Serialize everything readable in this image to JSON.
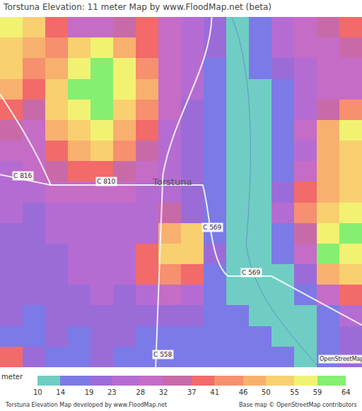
{
  "chart_data": {
    "type": "heatmap",
    "title": "Torstuna Elevation: 11 meter Map by www.FloodMap.net (beta)",
    "z": [
      [
        57,
        52,
        39,
        30,
        30,
        34,
        39,
        30,
        25,
        21,
        12,
        16,
        25,
        30,
        34,
        39
      ],
      [
        52,
        48,
        43,
        52,
        57,
        48,
        39,
        30,
        25,
        21,
        12,
        16,
        25,
        30,
        30,
        34
      ],
      [
        52,
        43,
        48,
        57,
        62,
        57,
        43,
        30,
        25,
        16,
        12,
        16,
        21,
        25,
        30,
        30
      ],
      [
        48,
        39,
        52,
        62,
        62,
        57,
        48,
        30,
        25,
        16,
        12,
        12,
        16,
        25,
        30,
        30
      ],
      [
        39,
        34,
        52,
        57,
        62,
        52,
        43,
        30,
        21,
        16,
        12,
        12,
        16,
        25,
        34,
        43
      ],
      [
        34,
        30,
        48,
        52,
        57,
        48,
        39,
        25,
        21,
        16,
        12,
        12,
        16,
        30,
        48,
        57
      ],
      [
        30,
        30,
        39,
        48,
        52,
        43,
        34,
        25,
        21,
        16,
        12,
        12,
        16,
        25,
        48,
        52
      ],
      [
        25,
        30,
        34,
        39,
        39,
        34,
        30,
        25,
        21,
        16,
        12,
        12,
        16,
        30,
        48,
        52
      ],
      [
        25,
        25,
        30,
        30,
        30,
        30,
        25,
        25,
        21,
        16,
        12,
        12,
        21,
        39,
        48,
        52
      ],
      [
        25,
        21,
        25,
        25,
        25,
        25,
        25,
        34,
        21,
        16,
        12,
        12,
        25,
        43,
        52,
        57
      ],
      [
        21,
        21,
        25,
        25,
        25,
        25,
        25,
        48,
        52,
        16,
        12,
        12,
        16,
        34,
        57,
        62
      ],
      [
        21,
        21,
        21,
        25,
        25,
        25,
        39,
        52,
        52,
        21,
        12,
        12,
        16,
        30,
        62,
        57
      ],
      [
        21,
        21,
        21,
        25,
        25,
        25,
        39,
        43,
        39,
        16,
        12,
        12,
        12,
        21,
        48,
        52
      ],
      [
        21,
        21,
        21,
        21,
        25,
        21,
        25,
        30,
        25,
        16,
        12,
        12,
        12,
        16,
        30,
        39
      ],
      [
        21,
        16,
        21,
        21,
        21,
        21,
        21,
        21,
        21,
        16,
        16,
        12,
        12,
        12,
        16,
        25
      ],
      [
        16,
        16,
        21,
        16,
        21,
        21,
        16,
        16,
        16,
        16,
        16,
        16,
        12,
        12,
        16,
        21
      ],
      [
        39,
        21,
        16,
        16,
        21,
        16,
        16,
        16,
        16,
        16,
        16,
        16,
        16,
        12,
        16,
        21
      ]
    ],
    "xlim": [
      -0.5,
      15.5
    ],
    "ylim": [
      16.5,
      -0.5
    ],
    "tick_labels": false,
    "grid": false,
    "colorbar_title": "meter",
    "zlim": [
      10,
      64
    ],
    "zticks": [
      10,
      14,
      19,
      23,
      28,
      32,
      37,
      41,
      46,
      50,
      55,
      59,
      64
    ],
    "colors": [
      "#6fcdc3",
      "#7c7ae6",
      "#9b6cd8",
      "#b56cd2",
      "#c56cc6",
      "#c86aa8",
      "#f26a6a",
      "#f6906e",
      "#f8b06e",
      "#f8d070",
      "#f2f272",
      "#86ee70"
    ],
    "annotations": [
      {
        "text": "C 816",
        "x": 0.5,
        "y": 7.2
      },
      {
        "text": "C 810",
        "x": 4.2,
        "y": 7.5
      },
      {
        "text": "Torstuna",
        "x": 7.1,
        "y": 7.5
      },
      {
        "text": "C 569",
        "x": 8.9,
        "y": 9.7
      },
      {
        "text": "C 569",
        "x": 10.6,
        "y": 11.9
      },
      {
        "text": "C 558",
        "x": 6.7,
        "y": 15.9
      },
      {
        "text": "OpenStreetMap",
        "x": 14.6,
        "y": 16.1
      }
    ],
    "footer_left": "Torstuna Elevation Map developed by www.FloodMap.net",
    "footer_right": "Base map © OpenStreetMap contributors"
  }
}
